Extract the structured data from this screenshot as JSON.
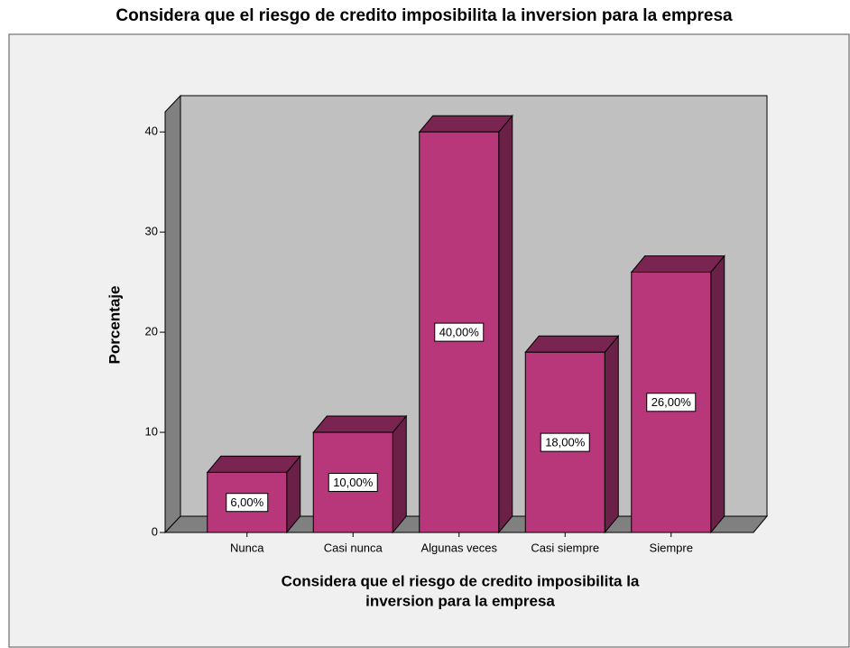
{
  "chart_data": {
    "type": "bar3d",
    "title": "Considera que el riesgo de credito imposibilita la inversion para la empresa",
    "xlabel": [
      "Considera que el riesgo de credito imposibilita la",
      "inversion para la empresa"
    ],
    "ylabel": "Porcentaje",
    "categories": [
      "Nunca",
      "Casi nunca",
      "Algunas veces",
      "Casi siempre",
      "Siempre"
    ],
    "values": [
      6,
      10,
      40,
      18,
      26
    ],
    "value_labels": [
      "6,00%",
      "10,00%",
      "40,00%",
      "18,00%",
      "26,00%"
    ],
    "color": "#b8377a",
    "ylim": [
      0,
      42
    ],
    "yticks": [
      0,
      10,
      20,
      30,
      40
    ]
  }
}
